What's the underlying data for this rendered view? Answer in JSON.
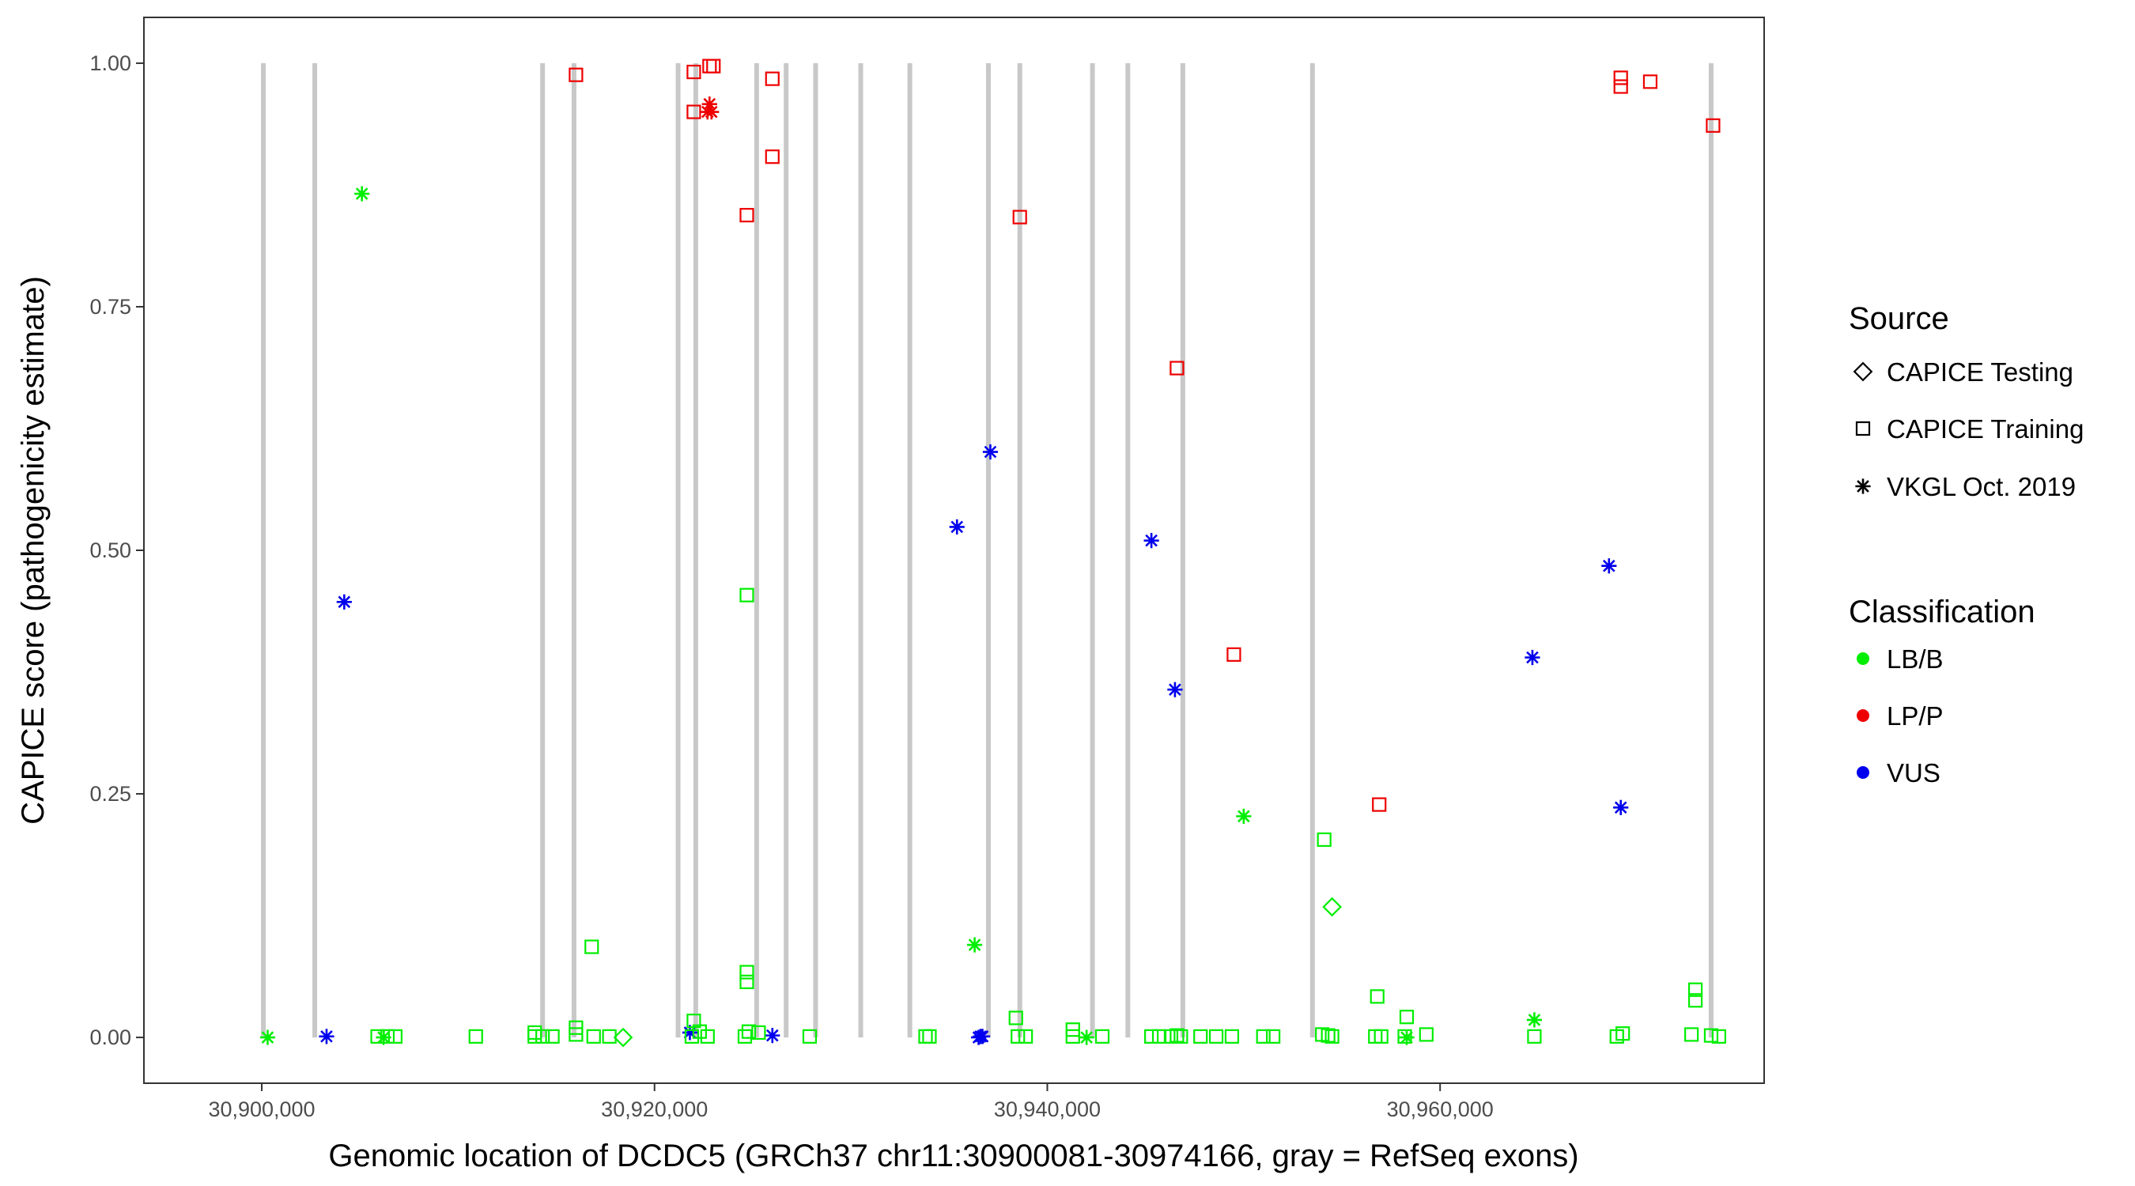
{
  "chart_data": {
    "type": "scatter",
    "xlabel": "Genomic location of DCDC5 (GRCh37 chr11:30900081-30974166, gray = RefSeq exons)",
    "ylabel": "CAPICE score (pathogenicity estimate)",
    "xlim": [
      30894000,
      30976500
    ],
    "ylim": [
      -0.047,
      1.047
    ],
    "x_ticks": [
      30900000,
      30920000,
      30940000,
      30960000
    ],
    "x_tick_labels": [
      "30,900,000",
      "30,920,000",
      "30,940,000",
      "30,960,000"
    ],
    "y_ticks": [
      0,
      0.25,
      0.5,
      0.75,
      1.0
    ],
    "y_tick_labels": [
      "0.00",
      "0.25",
      "0.50",
      "0.75",
      "1.00"
    ],
    "grid": false,
    "exons": [
      30900081,
      30902700,
      30914300,
      30915900,
      30921200,
      30922100,
      30925200,
      30926700,
      30928200,
      30930500,
      30933000,
      30937000,
      30938600,
      30942300,
      30944100,
      30946900,
      30953500,
      30973800
    ],
    "legend": {
      "placement": "right",
      "source_title": "Source",
      "source_entries": [
        {
          "label": "CAPICE Testing",
          "shape": "diamond"
        },
        {
          "label": "CAPICE Training",
          "shape": "square"
        },
        {
          "label": "VKGL Oct. 2019",
          "shape": "asterisk"
        }
      ],
      "class_title": "Classification",
      "class_entries": [
        {
          "label": "LB/B",
          "color": "#00ee00"
        },
        {
          "label": "LP/P",
          "color": "#ee0000"
        },
        {
          "label": "VUS",
          "color": "#0000ee"
        }
      ]
    },
    "colors": {
      "LB/B": "#00ee00",
      "LP/P": "#ee0000",
      "VUS": "#0000ee"
    },
    "series": [
      {
        "classification": "LP/P",
        "source": "CAPICE Training",
        "points": [
          [
            30916000,
            0.988
          ],
          [
            30922000,
            0.991
          ],
          [
            30922800,
            0.997
          ],
          [
            30923000,
            0.997
          ],
          [
            30926000,
            0.984
          ],
          [
            30922000,
            0.95
          ],
          [
            30926000,
            0.904
          ],
          [
            30924700,
            0.844
          ],
          [
            30938600,
            0.842
          ],
          [
            30946600,
            0.687
          ],
          [
            30949500,
            0.393
          ],
          [
            30956900,
            0.239
          ],
          [
            30969200,
            0.985
          ],
          [
            30969200,
            0.976
          ],
          [
            30970700,
            0.981
          ],
          [
            30973900,
            0.936
          ]
        ]
      },
      {
        "classification": "LP/P",
        "source": "VKGL Oct. 2019",
        "points": [
          [
            30922800,
            0.958
          ],
          [
            30922700,
            0.95
          ],
          [
            30922900,
            0.95
          ]
        ]
      },
      {
        "classification": "VUS",
        "source": "VKGL Oct. 2019",
        "points": [
          [
            30904200,
            0.447
          ],
          [
            30903300,
            0.001
          ],
          [
            30921800,
            0.005
          ],
          [
            30926000,
            0.002
          ],
          [
            30935400,
            0.524
          ],
          [
            30937100,
            0.601
          ],
          [
            30936600,
            0.001
          ],
          [
            30936500,
            0.0
          ],
          [
            30936700,
            0.001
          ],
          [
            30945300,
            0.51
          ],
          [
            30946500,
            0.357
          ],
          [
            30964700,
            0.39
          ],
          [
            30968600,
            0.484
          ],
          [
            30969200,
            0.236
          ]
        ]
      },
      {
        "classification": "LB/B",
        "source": "VKGL Oct. 2019",
        "points": [
          [
            30905100,
            0.866
          ],
          [
            30900300,
            0.0
          ],
          [
            30936300,
            0.095
          ],
          [
            30950000,
            0.227
          ],
          [
            30964800,
            0.018
          ],
          [
            30942000,
            0.0
          ],
          [
            30906200,
            0.0
          ],
          [
            30958300,
            0.0
          ]
        ]
      },
      {
        "classification": "LB/B",
        "source": "CAPICE Testing",
        "points": [
          [
            30954500,
            0.134
          ],
          [
            30918400,
            0.0
          ]
        ]
      },
      {
        "classification": "LB/B",
        "source": "CAPICE Training",
        "points": [
          [
            30916800,
            0.093
          ],
          [
            30924700,
            0.454
          ],
          [
            30924700,
            0.067
          ],
          [
            30924700,
            0.057
          ],
          [
            30922000,
            0.017
          ],
          [
            30938400,
            0.02
          ],
          [
            30954100,
            0.203
          ],
          [
            30956800,
            0.042
          ],
          [
            30958300,
            0.021
          ],
          [
            30973000,
            0.049
          ],
          [
            30973000,
            0.038
          ],
          [
            30913900,
            0.005
          ],
          [
            30916000,
            0.01
          ],
          [
            30916000,
            0.003
          ],
          [
            30941300,
            0.008
          ],
          [
            30924800,
            0.006
          ],
          [
            30925300,
            0.005
          ],
          [
            30922300,
            0.006
          ],
          [
            30905900,
            0.001
          ],
          [
            30906400,
            0.001
          ],
          [
            30906800,
            0.001
          ],
          [
            30910900,
            0.001
          ],
          [
            30913900,
            0.001
          ],
          [
            30914300,
            0.001
          ],
          [
            30914800,
            0.001
          ],
          [
            30916900,
            0.001
          ],
          [
            30917700,
            0.001
          ],
          [
            30921900,
            0.001
          ],
          [
            30922700,
            0.001
          ],
          [
            30924600,
            0.001
          ],
          [
            30927900,
            0.001
          ],
          [
            30933800,
            0.001
          ],
          [
            30934000,
            0.001
          ],
          [
            30938500,
            0.001
          ],
          [
            30938900,
            0.001
          ],
          [
            30941300,
            0.001
          ],
          [
            30942800,
            0.001
          ],
          [
            30945300,
            0.001
          ],
          [
            30945700,
            0.001
          ],
          [
            30946300,
            0.001
          ],
          [
            30946600,
            0.002
          ],
          [
            30946800,
            0.001
          ],
          [
            30947800,
            0.001
          ],
          [
            30948600,
            0.001
          ],
          [
            30949400,
            0.001
          ],
          [
            30951000,
            0.001
          ],
          [
            30951500,
            0.001
          ],
          [
            30954000,
            0.003
          ],
          [
            30954300,
            0.002
          ],
          [
            30954500,
            0.001
          ],
          [
            30956700,
            0.001
          ],
          [
            30957000,
            0.001
          ],
          [
            30958200,
            0.001
          ],
          [
            30959300,
            0.003
          ],
          [
            30964800,
            0.001
          ],
          [
            30969000,
            0.001
          ],
          [
            30969300,
            0.004
          ],
          [
            30972800,
            0.003
          ],
          [
            30973800,
            0.002
          ],
          [
            30974200,
            0.001
          ]
        ]
      }
    ]
  }
}
